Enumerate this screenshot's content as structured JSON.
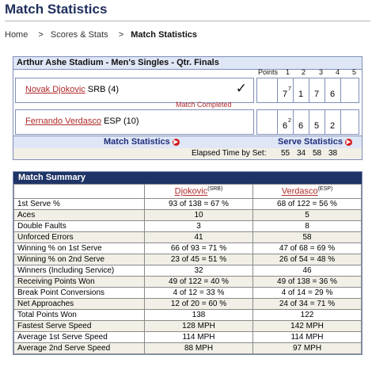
{
  "page": {
    "title": "Match Statistics"
  },
  "breadcrumb": {
    "home": "Home",
    "scores": "Scores & Stats",
    "current": "Match Statistics"
  },
  "scoreboard": {
    "title": "Arthur Ashe Stadium - Men's Singles - Qtr. Finals",
    "columns": {
      "points": "Points",
      "s1": "1",
      "s2": "2",
      "s3": "3",
      "s4": "4",
      "s5": "5"
    },
    "players": [
      {
        "name": "Novak Djokovic",
        "suffix": "SRB (4)",
        "sets": [
          "7",
          "1",
          "7",
          "6"
        ],
        "tiebreaks": [
          "7",
          "",
          "",
          ""
        ],
        "winner": true
      },
      {
        "name": "Fernando Verdasco",
        "suffix": "ESP (10)",
        "sets": [
          "6",
          "6",
          "5",
          "2"
        ],
        "tiebreaks": [
          "2",
          "",
          "",
          ""
        ],
        "winner": false
      }
    ],
    "status": "Match Completed",
    "links": {
      "match": "Match Statistics",
      "serve": "Serve Statistics"
    },
    "elapsed": {
      "label": "Elapsed Time by Set:",
      "times": [
        "55",
        "34",
        "58",
        "38"
      ]
    }
  },
  "summary": {
    "title": "Match Summary",
    "players": [
      {
        "name": "Djokovic",
        "country": "(SRB)"
      },
      {
        "name": "Verdasco",
        "country": "(ESP)"
      }
    ],
    "rows": [
      {
        "label": "1st Serve %",
        "p1": "93 of 138 = 67 %",
        "p2": "68 of 122 = 56 %"
      },
      {
        "label": "Aces",
        "p1": "10",
        "p2": "5"
      },
      {
        "label": "Double Faults",
        "p1": "3",
        "p2": "8"
      },
      {
        "label": "Unforced Errors",
        "p1": "41",
        "p2": "58"
      },
      {
        "label": "Winning % on 1st Serve",
        "p1": "66 of 93 = 71 %",
        "p2": "47 of 68 = 69 %"
      },
      {
        "label": "Winning % on 2nd Serve",
        "p1": "23 of 45 = 51 %",
        "p2": "26 of 54 = 48 %"
      },
      {
        "label": "Winners (Including Service)",
        "p1": "32",
        "p2": "46"
      },
      {
        "label": "Receiving Points Won",
        "p1": "49 of 122 = 40 %",
        "p2": "49 of 138 = 36 %"
      },
      {
        "label": "Break Point Conversions",
        "p1": "4 of 12 = 33 %",
        "p2": "4 of 14 = 29 %"
      },
      {
        "label": "Net Approaches",
        "p1": "12 of 20 = 60 %",
        "p2": "24 of 34 = 71 %"
      },
      {
        "label": "Total Points Won",
        "p1": "138",
        "p2": "122"
      },
      {
        "label": "Fastest Serve Speed",
        "p1": "128 MPH",
        "p2": "142 MPH"
      },
      {
        "label": "Average 1st Serve Speed",
        "p1": "114 MPH",
        "p2": "114 MPH"
      },
      {
        "label": "Average 2nd Serve Speed",
        "p1": "88 MPH",
        "p2": "97 MPH"
      }
    ]
  }
}
